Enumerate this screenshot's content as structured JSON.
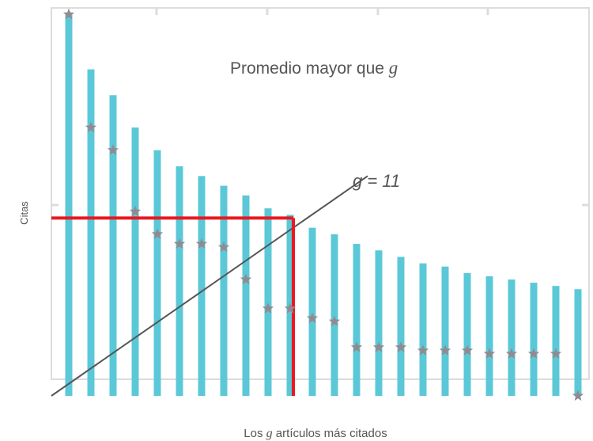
{
  "chart_data": {
    "type": "bar",
    "xlabel": "Los g artículos más citados",
    "xlabel_parts": [
      "Los ",
      "g",
      " artículos más citados"
    ],
    "ylabel": "Citas",
    "annotation_avg_parts": [
      "Promedio mayor que ",
      "g"
    ],
    "annotation_line": "g = 11",
    "g_value": 11,
    "ylim": [
      0,
      60
    ],
    "grid": false,
    "series": [
      {
        "name": "bars",
        "type": "bar",
        "color": "#5bc8d8",
        "values": [
          59,
          50.5,
          46.5,
          41.5,
          38,
          35.5,
          34,
          32.5,
          31,
          29,
          28,
          26,
          25,
          23.5,
          22.5,
          21.5,
          20.5,
          20,
          19,
          18.5,
          18,
          17.5,
          17,
          16.5
        ]
      },
      {
        "name": "stars",
        "type": "scatter",
        "color": "#928a8f",
        "values": [
          59,
          41.5,
          38,
          28.5,
          25,
          23.5,
          23.5,
          23,
          18,
          13.5,
          13.5,
          12,
          11.5,
          7.5,
          7.5,
          7.5,
          7,
          7,
          7,
          6.5,
          6.5,
          6.5,
          6.5,
          0
        ]
      }
    ],
    "reference_line": {
      "color": "#555555",
      "from": [
        0,
        0
      ],
      "to": [
        13.5,
        34
      ]
    },
    "highlight": {
      "color": "#e8191e",
      "x": 11,
      "y": 27.5
    }
  }
}
